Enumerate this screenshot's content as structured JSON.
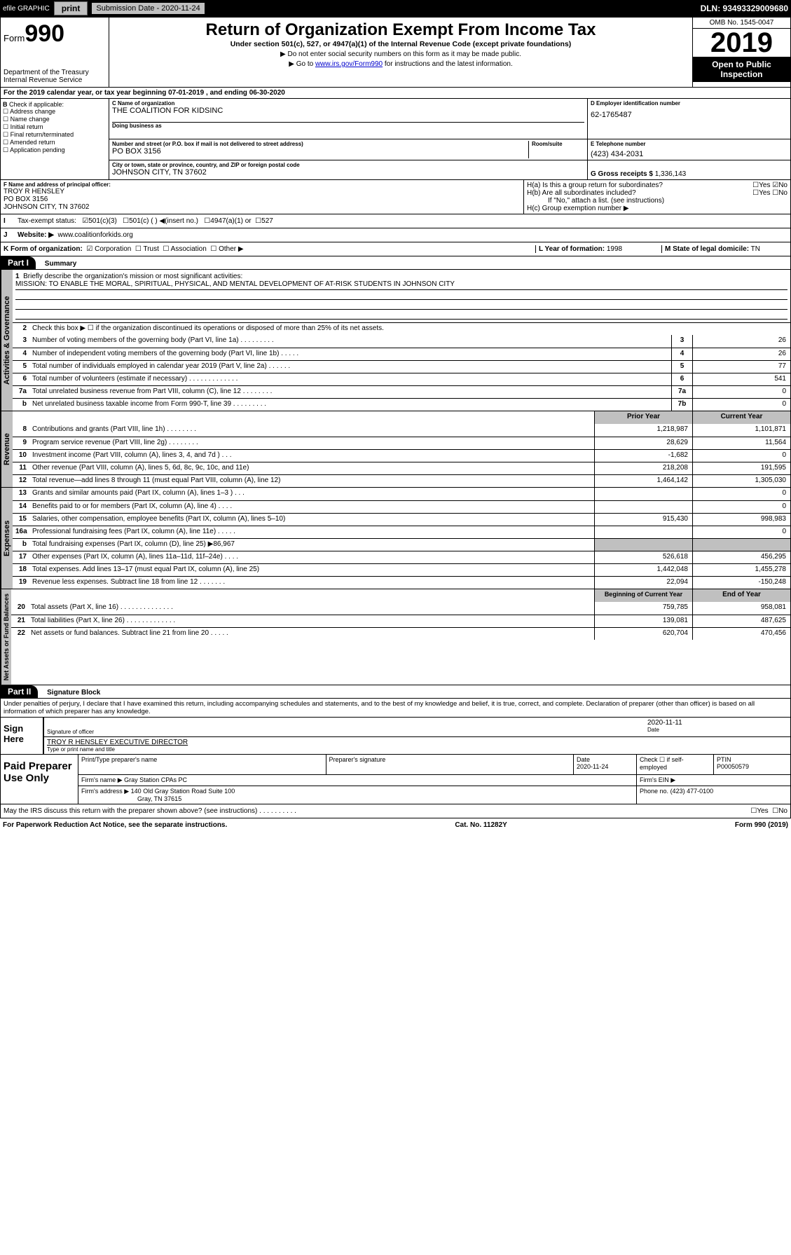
{
  "topbar": {
    "efile": "efile GRAPHIC",
    "print": "print",
    "subdate_label": "Submission Date - 2020-11-24",
    "dln": "DLN: 93493329009680"
  },
  "header": {
    "form": "Form",
    "num": "990",
    "dept": "Department of the Treasury Internal Revenue Service",
    "title": "Return of Organization Exempt From Income Tax",
    "subtitle": "Under section 501(c), 527, or 4947(a)(1) of the Internal Revenue Code (except private foundations)",
    "note1": "▶ Do not enter social security numbers on this form as it may be made public.",
    "note2_pre": "▶ Go to ",
    "note2_link": "www.irs.gov/Form990",
    "note2_post": " for instructions and the latest information.",
    "omb": "OMB No. 1545-0047",
    "year": "2019",
    "open": "Open to Public Inspection"
  },
  "A": {
    "text": "For the 2019 calendar year, or tax year beginning 07-01-2019    , and ending 06-30-2020"
  },
  "B": {
    "label": "Check if applicable:",
    "items": [
      "Address change",
      "Name change",
      "Initial return",
      "Final return/terminated",
      "Amended return",
      "Application pending"
    ]
  },
  "C": {
    "name_label": "C Name of organization",
    "name": "THE COALITION FOR KIDSINC",
    "dba_label": "Doing business as",
    "addr_label": "Number and street (or P.O. box if mail is not delivered to street address)",
    "room_label": "Room/suite",
    "addr": "PO BOX 3156",
    "city_label": "City or town, state or province, country, and ZIP or foreign postal code",
    "city": "JOHNSON CITY, TN  37602"
  },
  "D": {
    "label": "D Employer identification number",
    "val": "62-1765487"
  },
  "E": {
    "label": "E Telephone number",
    "val": "(423) 434-2031"
  },
  "G": {
    "label": "G Gross receipts $",
    "val": "1,336,143"
  },
  "F": {
    "label": "F  Name and address of principal officer:",
    "name": "TROY R HENSLEY",
    "addr1": "PO BOX 3156",
    "addr2": "JOHNSON CITY, TN  37602"
  },
  "H": {
    "a": "H(a)  Is this a group return for subordinates?",
    "b": "H(b)  Are all subordinates included?",
    "bnote": "If \"No,\" attach a list. (see instructions)",
    "c": "H(c)  Group exemption number ▶",
    "yes": "Yes",
    "no": "No"
  },
  "I": {
    "label": "Tax-exempt status:",
    "opts": [
      "501(c)(3)",
      "501(c) (  ) ◀(insert no.)",
      "4947(a)(1) or",
      "527"
    ]
  },
  "J": {
    "label": "Website: ▶",
    "val": "www.coalitionforkids.org"
  },
  "K": {
    "label": "K Form of organization:",
    "opts": [
      "Corporation",
      "Trust",
      "Association",
      "Other ▶"
    ]
  },
  "L": {
    "label": "L Year of formation:",
    "val": "1998"
  },
  "M": {
    "label": "M State of legal domicile:",
    "val": "TN"
  },
  "part1": {
    "hdr": "Part I",
    "title": "Summary",
    "tab1": "Activities & Governance",
    "tab2": "Revenue",
    "tab3": "Expenses",
    "tab4": "Net Assets or Fund Balances",
    "l1": "Briefly describe the organization's mission or most significant activities:",
    "mission": "MISSION: TO ENABLE THE MORAL, SPIRITUAL, PHYSICAL, AND MENTAL DEVELOPMENT OF AT-RISK STUDENTS IN JOHNSON CITY",
    "l2": "Check this box ▶ ☐  if the organization discontinued its operations or disposed of more than 25% of its net assets.",
    "lines_gov": [
      {
        "n": "3",
        "d": "Number of voting members of the governing body (Part VI, line 1a)  .    .    .    .    .    .    .    .    .",
        "b": "3",
        "v": "26"
      },
      {
        "n": "4",
        "d": "Number of independent voting members of the governing body (Part VI, line 1b)  .    .    .    .    .",
        "b": "4",
        "v": "26"
      },
      {
        "n": "5",
        "d": "Total number of individuals employed in calendar year 2019 (Part V, line 2a)  .    .    .    .    .    .",
        "b": "5",
        "v": "77"
      },
      {
        "n": "6",
        "d": "Total number of volunteers (estimate if necessary)   .    .    .    .    .    .    .    .    .    .    .    .    .",
        "b": "6",
        "v": "541"
      },
      {
        "n": "7a",
        "d": "Total unrelated business revenue from Part VIII, column (C), line 12  .    .    .    .    .    .    .    .",
        "b": "7a",
        "v": "0"
      },
      {
        "n": "b",
        "d": "Net unrelated business taxable income from Form 990-T, line 39   .    .    .    .    .    .    .    .    .",
        "b": "7b",
        "v": "0"
      }
    ],
    "hdr_prior": "Prior Year",
    "hdr_curr": "Current Year",
    "lines_rev": [
      {
        "n": "8",
        "d": "Contributions and grants (Part VIII, line 1h)   .    .    .    .    .    .    .    .",
        "p": "1,218,987",
        "c": "1,101,871"
      },
      {
        "n": "9",
        "d": "Program service revenue (Part VIII, line 2g)   .    .    .    .    .    .    .    .",
        "p": "28,629",
        "c": "11,564"
      },
      {
        "n": "10",
        "d": "Investment income (Part VIII, column (A), lines 3, 4, and 7d )   .    .    .",
        "p": "-1,682",
        "c": "0"
      },
      {
        "n": "11",
        "d": "Other revenue (Part VIII, column (A), lines 5, 6d, 8c, 9c, 10c, and 11e)",
        "p": "218,208",
        "c": "191,595"
      },
      {
        "n": "12",
        "d": "Total revenue—add lines 8 through 11 (must equal Part VIII, column (A), line 12)",
        "p": "1,464,142",
        "c": "1,305,030"
      }
    ],
    "lines_exp": [
      {
        "n": "13",
        "d": "Grants and similar amounts paid (Part IX, column (A), lines 1–3 )  .    .    .",
        "p": "",
        "c": "0"
      },
      {
        "n": "14",
        "d": "Benefits paid to or for members (Part IX, column (A), line 4)  .    .    .    .",
        "p": "",
        "c": "0"
      },
      {
        "n": "15",
        "d": "Salaries, other compensation, employee benefits (Part IX, column (A), lines 5–10)",
        "p": "915,430",
        "c": "998,983"
      },
      {
        "n": "16a",
        "d": "Professional fundraising fees (Part IX, column (A), line 11e)  .    .    .    .    .",
        "p": "",
        "c": "0"
      },
      {
        "n": "b",
        "d": "Total fundraising expenses (Part IX, column (D), line 25) ▶86,967",
        "p": "GRAY",
        "c": "GRAY"
      },
      {
        "n": "17",
        "d": "Other expenses (Part IX, column (A), lines 11a–11d, 11f–24e)  .    .    .    .",
        "p": "526,618",
        "c": "456,295"
      },
      {
        "n": "18",
        "d": "Total expenses. Add lines 13–17 (must equal Part IX, column (A), line 25)",
        "p": "1,442,048",
        "c": "1,455,278"
      },
      {
        "n": "19",
        "d": "Revenue less expenses. Subtract line 18 from line 12  .    .    .    .    .    .    .",
        "p": "22,094",
        "c": "-150,248"
      }
    ],
    "hdr_begin": "Beginning of Current Year",
    "hdr_end": "End of Year",
    "lines_net": [
      {
        "n": "20",
        "d": "Total assets (Part X, line 16)  .    .    .    .    .    .    .    .    .    .    .    .    .    .",
        "p": "759,785",
        "c": "958,081"
      },
      {
        "n": "21",
        "d": "Total liabilities (Part X, line 26)  .    .    .    .    .    .    .    .    .    .    .    .    .",
        "p": "139,081",
        "c": "487,625"
      },
      {
        "n": "22",
        "d": "Net assets or fund balances. Subtract line 21 from line 20  .    .    .    .    .",
        "p": "620,704",
        "c": "470,456"
      }
    ]
  },
  "part2": {
    "hdr": "Part II",
    "title": "Signature Block",
    "decl": "Under penalties of perjury, I declare that I have examined this return, including accompanying schedules and statements, and to the best of my knowledge and belief, it is true, correct, and complete. Declaration of preparer (other than officer) is based on all information of which preparer has any knowledge.",
    "sign": "Sign Here",
    "sigoff": "Signature of officer",
    "date": "2020-11-11",
    "datelab": "Date",
    "name": "TROY R HENSLEY EXECUTIVE DIRECTOR",
    "namelab": "Type or print name and title",
    "paid": "Paid Preparer Use Only",
    "p_name_lab": "Print/Type preparer's name",
    "p_sig_lab": "Preparer's signature",
    "p_date_lab": "Date",
    "p_date": "2020-11-24",
    "p_check": "Check ☐ if self-employed",
    "p_ptin_lab": "PTIN",
    "p_ptin": "P00050579",
    "firm_name_lab": "Firm's name     ▶",
    "firm_name": "Gray Station CPAs PC",
    "firm_ein_lab": "Firm's EIN ▶",
    "firm_addr_lab": "Firm's address ▶",
    "firm_addr": "140 Old Gray Station Road Suite 100",
    "firm_city": "Gray, TN  37615",
    "phone_lab": "Phone no.",
    "phone": "(423) 477-0100",
    "discuss": "May the IRS discuss this return with the preparer shown above? (see instructions)    .    .    .    .    .    .    .    .    .    .",
    "yes": "Yes",
    "no": "No"
  },
  "footer": {
    "pra": "For Paperwork Reduction Act Notice, see the separate instructions.",
    "cat": "Cat. No. 11282Y",
    "form": "Form 990 (2019)"
  }
}
